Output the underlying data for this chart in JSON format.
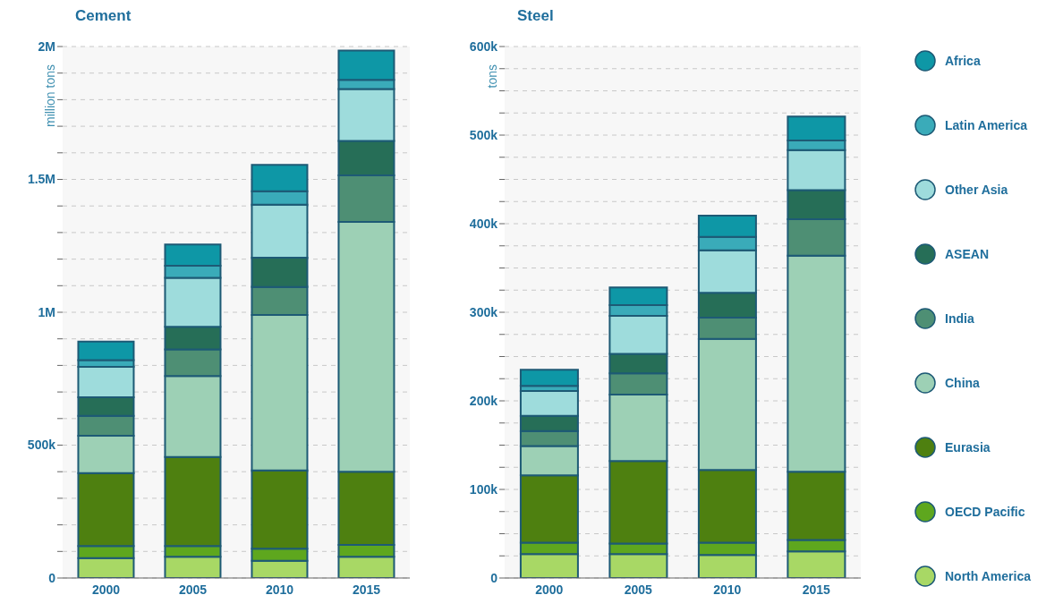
{
  "chart_data": [
    {
      "type": "bar",
      "stacked": true,
      "title": "Cement",
      "ylabel": "million tons",
      "categories": [
        "2000",
        "2005",
        "2010",
        "2015"
      ],
      "ylim": [
        0,
        2000000
      ],
      "yticks": [
        0,
        {
          "value": 100000,
          "label": null
        },
        {
          "value": 200000,
          "label": null
        },
        {
          "value": 300000,
          "label": null
        },
        {
          "value": 400000,
          "label": null
        },
        {
          "value": 500000,
          "label": "500k"
        },
        {
          "value": 600000,
          "label": null
        },
        {
          "value": 700000,
          "label": null
        },
        {
          "value": 800000,
          "label": null
        },
        {
          "value": 900000,
          "label": null
        },
        {
          "value": 1000000,
          "label": "1M"
        },
        {
          "value": 1100000,
          "label": null
        },
        {
          "value": 1200000,
          "label": null
        },
        {
          "value": 1300000,
          "label": null
        },
        {
          "value": 1400000,
          "label": null
        },
        {
          "value": 1500000,
          "label": "1.5M"
        },
        {
          "value": 1600000,
          "label": null
        },
        {
          "value": 1700000,
          "label": null
        },
        {
          "value": 1800000,
          "label": null
        },
        {
          "value": 1900000,
          "label": null
        },
        {
          "value": 2000000,
          "label": "2M"
        }
      ],
      "grid": "y",
      "legend": "right",
      "series": [
        {
          "name": "North America",
          "color": "#a8d865",
          "values": [
            75000,
            80000,
            65000,
            80000
          ]
        },
        {
          "name": "OECD Pacific",
          "color": "#5ea71e",
          "values": [
            45000,
            40000,
            45000,
            45000
          ]
        },
        {
          "name": "Eurasia",
          "color": "#4e8010",
          "values": [
            275000,
            335000,
            295000,
            275000
          ]
        },
        {
          "name": "China",
          "color": "#9dd0b5",
          "values": [
            140000,
            305000,
            585000,
            940000
          ]
        },
        {
          "name": "India",
          "color": "#4e8f74",
          "values": [
            75000,
            100000,
            105000,
            175000
          ]
        },
        {
          "name": "ASEAN",
          "color": "#266e57",
          "values": [
            70000,
            85000,
            110000,
            130000
          ]
        },
        {
          "name": "Other Asia",
          "color": "#9edcdc",
          "values": [
            115000,
            185000,
            200000,
            195000
          ]
        },
        {
          "name": "Latin America",
          "color": "#3aabb9",
          "values": [
            25000,
            45000,
            50000,
            35000
          ]
        },
        {
          "name": "Africa",
          "color": "#0e97a6",
          "values": [
            70000,
            80000,
            100000,
            110000
          ]
        }
      ]
    },
    {
      "type": "bar",
      "stacked": true,
      "title": "Steel",
      "ylabel": "tons",
      "categories": [
        "2000",
        "2005",
        "2010",
        "2015"
      ],
      "ylim": [
        0,
        600000
      ],
      "yticks": [
        0,
        {
          "value": 25000,
          "label": null
        },
        {
          "value": 50000,
          "label": null
        },
        {
          "value": 75000,
          "label": null
        },
        {
          "value": 100000,
          "label": "100k"
        },
        {
          "value": 125000,
          "label": null
        },
        {
          "value": 150000,
          "label": null
        },
        {
          "value": 175000,
          "label": null
        },
        {
          "value": 200000,
          "label": "200k"
        },
        {
          "value": 225000,
          "label": null
        },
        {
          "value": 250000,
          "label": null
        },
        {
          "value": 275000,
          "label": null
        },
        {
          "value": 300000,
          "label": "300k"
        },
        {
          "value": 325000,
          "label": null
        },
        {
          "value": 350000,
          "label": null
        },
        {
          "value": 375000,
          "label": null
        },
        {
          "value": 400000,
          "label": "400k"
        },
        {
          "value": 425000,
          "label": null
        },
        {
          "value": 450000,
          "label": null
        },
        {
          "value": 475000,
          "label": null
        },
        {
          "value": 500000,
          "label": "500k"
        },
        {
          "value": 525000,
          "label": null
        },
        {
          "value": 550000,
          "label": null
        },
        {
          "value": 575000,
          "label": null
        },
        {
          "value": 600000,
          "label": "600k"
        }
      ],
      "grid": "y",
      "legend": "right",
      "series": [
        {
          "name": "North America",
          "color": "#a8d865",
          "values": [
            27000,
            27000,
            26000,
            30000
          ]
        },
        {
          "name": "OECD Pacific",
          "color": "#5ea71e",
          "values": [
            13000,
            12000,
            14000,
            13000
          ]
        },
        {
          "name": "Eurasia",
          "color": "#4e8010",
          "values": [
            76000,
            93000,
            82000,
            77000
          ]
        },
        {
          "name": "China",
          "color": "#9dd0b5",
          "values": [
            33000,
            75000,
            148000,
            244000
          ]
        },
        {
          "name": "India",
          "color": "#4e8f74",
          "values": [
            17000,
            24000,
            24000,
            41000
          ]
        },
        {
          "name": "ASEAN",
          "color": "#266e57",
          "values": [
            17000,
            22000,
            28000,
            33000
          ]
        },
        {
          "name": "Other Asia",
          "color": "#9edcdc",
          "values": [
            28000,
            43000,
            48000,
            45000
          ]
        },
        {
          "name": "Latin America",
          "color": "#3aabb9",
          "values": [
            6000,
            12000,
            15000,
            11000
          ]
        },
        {
          "name": "Africa",
          "color": "#0e97a6",
          "values": [
            18000,
            20000,
            24000,
            27000
          ]
        }
      ]
    }
  ]
}
